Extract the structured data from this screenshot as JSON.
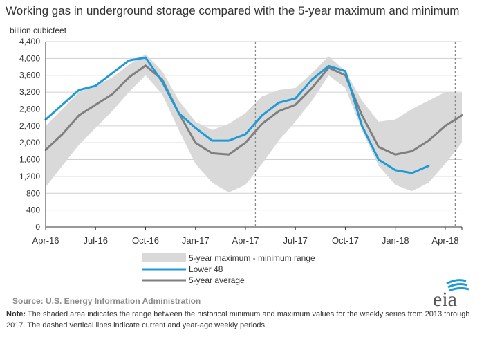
{
  "title": "Working gas in underground storage compared with the 5-year maximum and minimum",
  "colors": {
    "band": "#d9d9d9",
    "lower48": "#1f9ad6",
    "average": "#7f7f7f",
    "logo_blue": "#1f9ad6",
    "logo_text": "#555555"
  },
  "chart_data": {
    "type": "line",
    "ylabel": "billion cubicfeet",
    "ylim": [
      0,
      4400
    ],
    "yticks": [
      "0",
      "400",
      "800",
      "1,200",
      "1,600",
      "2,000",
      "2,400",
      "2,800",
      "3,200",
      "3,600",
      "4,000",
      "4,400"
    ],
    "ytick_values": [
      0,
      400,
      800,
      1200,
      1600,
      2000,
      2400,
      2800,
      3200,
      3600,
      4000,
      4400
    ],
    "xticks": [
      "Apr-16",
      "Jul-16",
      "Oct-16",
      "Jan-17",
      "Apr-17",
      "Jul-17",
      "Oct-17",
      "Jan-18",
      "Apr-18"
    ],
    "xlim": [
      0,
      25
    ],
    "grid": "horizontal",
    "legend_position": "bottom-center",
    "dashed_lines_at": [
      12.6,
      24.6
    ],
    "x": [
      0,
      1,
      2,
      3,
      4,
      5,
      6,
      7,
      8,
      9,
      10,
      11,
      12,
      13,
      14,
      15,
      16,
      17,
      18,
      19,
      20,
      21,
      22,
      23,
      24,
      25
    ],
    "series": [
      {
        "name": "5-year maximum - minimum range",
        "kind": "band",
        "upper": [
          2400,
          2800,
          3200,
          3350,
          3550,
          3850,
          4100,
          3700,
          3000,
          2500,
          2300,
          2450,
          2700,
          3100,
          3250,
          3300,
          3650,
          4050,
          3700,
          3000,
          2500,
          2550,
          2800,
          3000,
          3200,
          3180
        ],
        "lower": [
          950,
          1450,
          1950,
          2350,
          2750,
          3200,
          3600,
          3150,
          2300,
          1500,
          1050,
          820,
          1000,
          1500,
          2050,
          2500,
          3000,
          3600,
          3300,
          2300,
          1450,
          1000,
          850,
          1050,
          1500,
          2000
        ]
      },
      {
        "name": "Lower 48",
        "kind": "line",
        "values": [
          2550,
          2900,
          3250,
          3350,
          3650,
          3950,
          4020,
          3450,
          2700,
          2350,
          2050,
          2050,
          2200,
          2650,
          2950,
          3050,
          3500,
          3820,
          3700,
          2400,
          1600,
          1350,
          1280,
          1450,
          null,
          null
        ]
      },
      {
        "name": "5-year average",
        "kind": "line",
        "values": [
          1830,
          2200,
          2650,
          2900,
          3150,
          3550,
          3830,
          3500,
          2700,
          2000,
          1750,
          1720,
          2000,
          2450,
          2750,
          2900,
          3300,
          3780,
          3600,
          2650,
          1900,
          1720,
          1800,
          2050,
          2400,
          2650
        ]
      }
    ]
  },
  "source": "Source:  U.S. Energy Information Administration",
  "note_label": "Note:",
  "note_text": " The shaded area indicates the range between the historical minimum and maximum values for the weekly series from 2013 through 2017. The dashed vertical lines indicate current and year-ago weekly periods.",
  "logo_text": "eia"
}
